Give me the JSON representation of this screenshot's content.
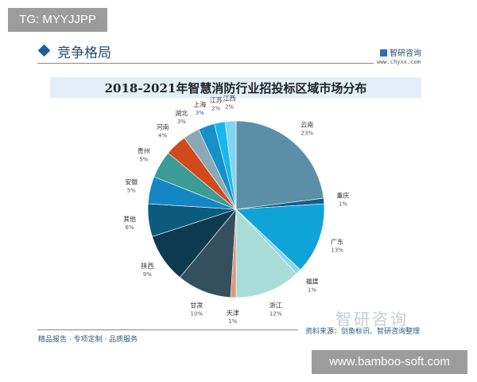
{
  "overlay_tag": "TG: MYYJJPP",
  "overlay_site": "www.bamboo-soft.com",
  "header": {
    "section": "竞争格局",
    "logo_name": "智研咨询",
    "logo_url": "www.chyxx.com"
  },
  "footer": {
    "slogan": "精品报告 · 专项定制 · 品质服务",
    "source": "资料来源：剑鱼标讯、智研咨询整理",
    "watermark": "智研咨询"
  },
  "colors": {
    "accent": "#1b5e95",
    "title_band": "#e2eff9"
  },
  "chart_data": {
    "type": "pie",
    "title": "2018-2021年智慧消防行业招投标区域市场分布",
    "start": "12 o'clock, clockwise",
    "legend": "none (direct labels)",
    "slices": [
      {
        "label": "云南",
        "value": 23,
        "color": "#5b8fa8"
      },
      {
        "label": "重庆",
        "value": 1,
        "color": "#0e5f86"
      },
      {
        "label": "广东",
        "value": 13,
        "color": "#10a3d8"
      },
      {
        "label": "福建",
        "value": 1,
        "color": "#8fd4ef"
      },
      {
        "label": "浙江",
        "value": 12,
        "color": "#a8dcd6"
      },
      {
        "label": "天津",
        "value": 1,
        "color": "#e8937a"
      },
      {
        "label": "甘肃",
        "value": 10,
        "color": "#34505f"
      },
      {
        "label": "陕西",
        "value": 9,
        "color": "#0d3a4e"
      },
      {
        "label": "其他",
        "value": 6,
        "color": "#0b5b7c"
      },
      {
        "label": "安徽",
        "value": 5,
        "color": "#1586c4"
      },
      {
        "label": "贵州",
        "value": 5,
        "color": "#3a9c94"
      },
      {
        "label": "河南",
        "value": 4,
        "color": "#d04a1e"
      },
      {
        "label": "湖北",
        "value": 3,
        "color": "#8aa8b6"
      },
      {
        "label": "上海",
        "value": 3,
        "color": "#1590c8"
      },
      {
        "label": "江苏",
        "value": 2,
        "color": "#18b8ec"
      },
      {
        "label": "江西",
        "value": 2,
        "color": "#7fd6f4"
      }
    ]
  }
}
